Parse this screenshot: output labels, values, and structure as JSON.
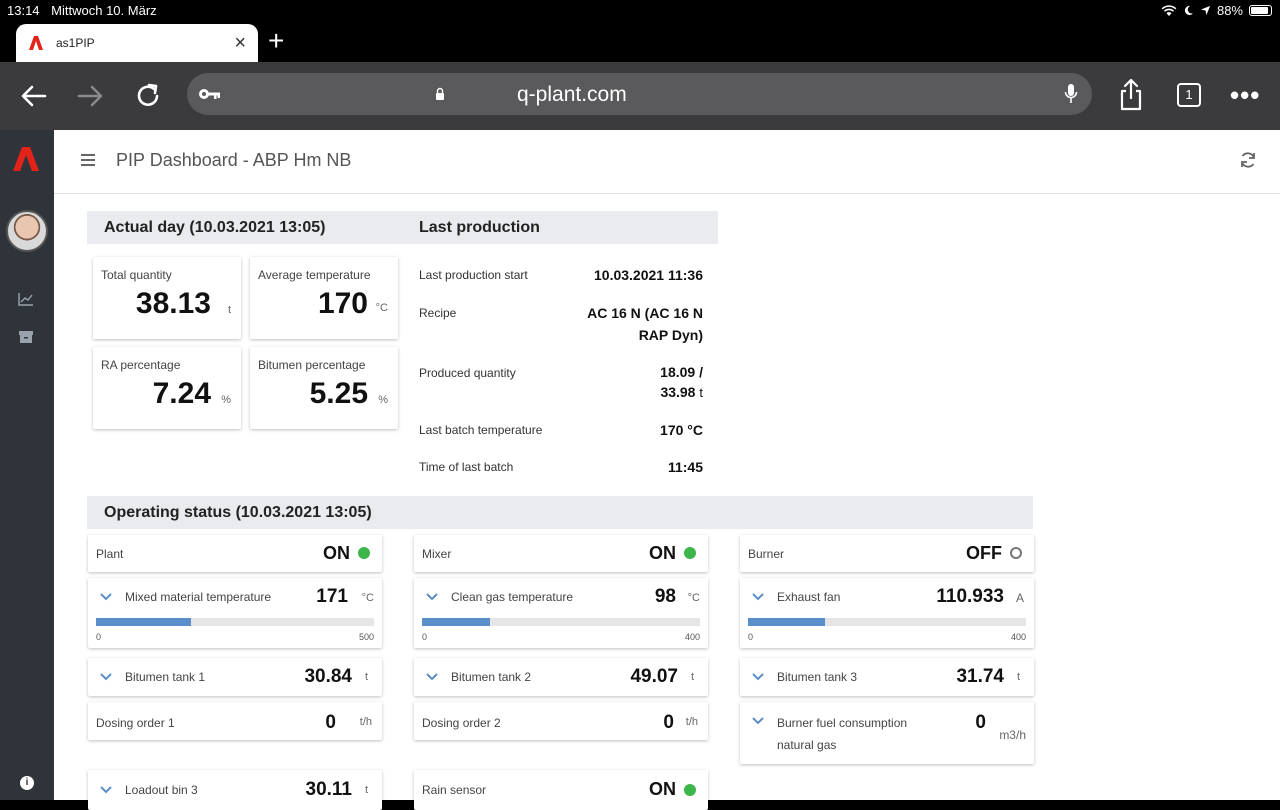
{
  "status_bar": {
    "time": "13:14",
    "date": "Mittwoch 10. März",
    "battery": "88%",
    "battery_level": 0.88
  },
  "browser": {
    "tab_title": "as1PIP",
    "url": "q-plant.com",
    "tab_count": "1"
  },
  "app": {
    "title": "PIP Dashboard - ABP Hm NB"
  },
  "actual_day": {
    "heading": "Actual day (10.03.2021 13:05)",
    "kpis": [
      {
        "label": "Total quantity",
        "value": "38.13",
        "unit": "t"
      },
      {
        "label": "Average temperature",
        "value": "170",
        "unit": "°C"
      },
      {
        "label": "RA percentage",
        "value": "7.24",
        "unit": "%"
      },
      {
        "label": "Bitumen percentage",
        "value": "5.25",
        "unit": "%"
      }
    ]
  },
  "last_production": {
    "heading": "Last production",
    "rows": [
      {
        "key": "Last production start",
        "value": "10.03.2021 11:36"
      },
      {
        "key": "Recipe",
        "value_line1": "AC 16 N (AC 16 N",
        "value_line2": "RAP Dyn)"
      },
      {
        "key": "Produced quantity",
        "value_line1": "18.09 /",
        "value_line2": "33.98",
        "unit": "t"
      },
      {
        "key": "Last batch temperature",
        "value": "170 °C"
      },
      {
        "key": "Time of last batch",
        "value": "11:45"
      }
    ]
  },
  "operating_status": {
    "heading": "Operating status (10.03.2021 13:05)",
    "columns": [
      {
        "status": {
          "label": "Plant",
          "value": "ON",
          "on": true
        },
        "gauge": {
          "label": "Mixed material temperature",
          "value": "171",
          "unit": "°C",
          "min": "0",
          "max": "500",
          "fraction": 0.342
        },
        "tank": {
          "label": "Bitumen tank 1",
          "value": "30.84",
          "unit": "t"
        },
        "dosing": {
          "label": "Dosing order 1",
          "value": "0",
          "unit": "t/h"
        },
        "extra": {
          "label": "Loadout bin 3",
          "value": "30.11",
          "unit": "t"
        }
      },
      {
        "status": {
          "label": "Mixer",
          "value": "ON",
          "on": true
        },
        "gauge": {
          "label": "Clean gas temperature",
          "value": "98",
          "unit": "°C",
          "min": "0",
          "max": "400",
          "fraction": 0.245
        },
        "tank": {
          "label": "Bitumen tank 2",
          "value": "49.07",
          "unit": "t"
        },
        "dosing": {
          "label": "Dosing order 2",
          "value": "0",
          "unit": "t/h"
        },
        "extra": {
          "label": "Rain sensor",
          "value": "ON"
        }
      },
      {
        "status": {
          "label": "Burner",
          "value": "OFF",
          "on": false
        },
        "gauge": {
          "label": "Exhaust fan",
          "value": "110.933",
          "unit": "A",
          "min": "0",
          "max": "400",
          "fraction": 0.277
        },
        "tank": {
          "label": "Bitumen tank 3",
          "value": "31.74",
          "unit": "t"
        },
        "fuel": {
          "label_line1": "Burner fuel consumption",
          "label_line2": "natural gas",
          "value": "0",
          "unit": "m3/h"
        }
      }
    ]
  },
  "colors": {
    "accent": "#5b8fcc",
    "on": "#3cb54a",
    "brand": "#e2231a"
  }
}
